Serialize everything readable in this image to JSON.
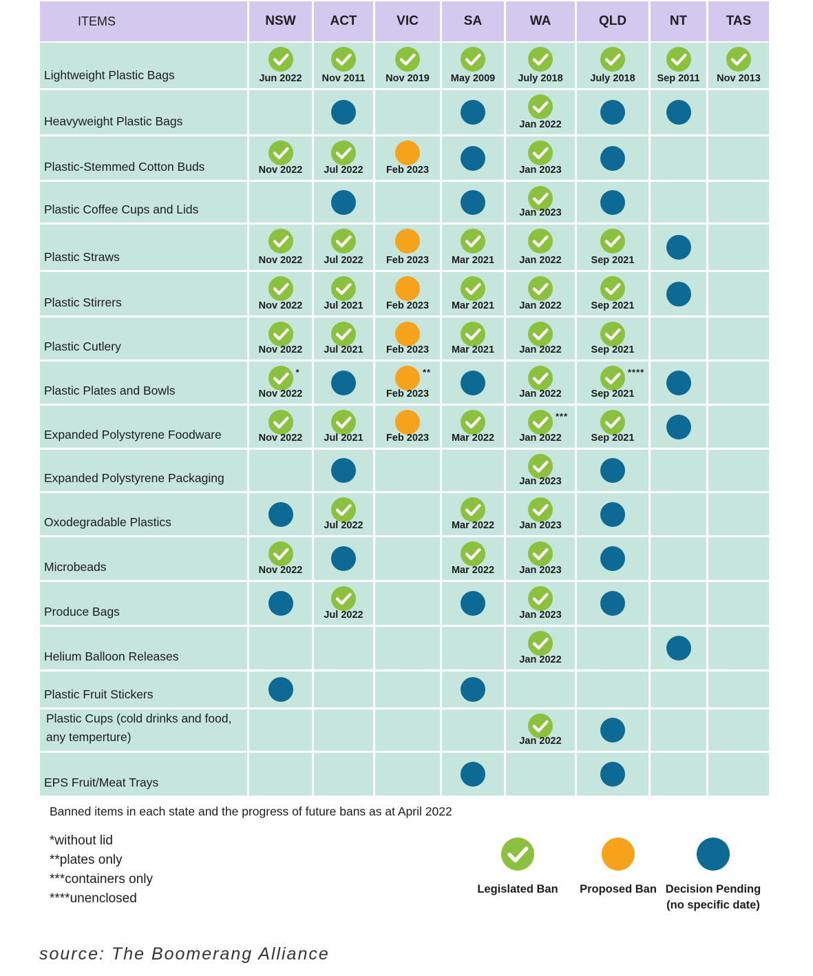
{
  "header": {
    "items_label": "ITEMS",
    "states": [
      "NSW",
      "ACT",
      "VIC",
      "SA",
      "WA",
      "QLD",
      "NT",
      "TAS"
    ]
  },
  "colors": {
    "header_bg": "#d4c8ee",
    "cell_bg": "#c6e6dd",
    "legislated": "#8cc13f",
    "proposed": "#f7a21b",
    "pending": "#0d6a94"
  },
  "rows": [
    {
      "item": "Lightweight Plastic Bags",
      "cells": [
        {
          "status": "legislated",
          "date": "Jun 2022"
        },
        {
          "status": "legislated",
          "date": "Nov 2011"
        },
        {
          "status": "legislated",
          "date": "Nov 2019"
        },
        {
          "status": "legislated",
          "date": "May 2009"
        },
        {
          "status": "legislated",
          "date": "July 2018"
        },
        {
          "status": "legislated",
          "date": "July 2018"
        },
        {
          "status": "legislated",
          "date": "Sep 2011"
        },
        {
          "status": "legislated",
          "date": "Nov 2013"
        }
      ]
    },
    {
      "item": "Heavyweight Plastic Bags",
      "cells": [
        null,
        {
          "status": "pending"
        },
        null,
        {
          "status": "pending"
        },
        {
          "status": "legislated",
          "date": "Jan 2022"
        },
        {
          "status": "pending"
        },
        {
          "status": "pending"
        },
        null
      ]
    },
    {
      "item": "Plastic-Stemmed Cotton Buds",
      "cells": [
        {
          "status": "legislated",
          "date": "Nov 2022"
        },
        {
          "status": "legislated",
          "date": "Jul 2022"
        },
        {
          "status": "proposed",
          "date": "Feb 2023"
        },
        {
          "status": "pending"
        },
        {
          "status": "legislated",
          "date": "Jan 2023"
        },
        {
          "status": "pending"
        },
        null,
        null
      ]
    },
    {
      "item": "Plastic Coffee Cups and Lids",
      "cells": [
        null,
        {
          "status": "pending"
        },
        null,
        {
          "status": "pending"
        },
        {
          "status": "legislated",
          "date": "Jan 2023"
        },
        {
          "status": "pending"
        },
        null,
        null
      ]
    },
    {
      "item": "Plastic Straws",
      "cells": [
        {
          "status": "legislated",
          "date": "Nov 2022"
        },
        {
          "status": "legislated",
          "date": "Jul 2022"
        },
        {
          "status": "proposed",
          "date": "Feb 2023"
        },
        {
          "status": "legislated",
          "date": "Mar 2021"
        },
        {
          "status": "legislated",
          "date": "Jan 2022"
        },
        {
          "status": "legislated",
          "date": "Sep 2021"
        },
        {
          "status": "pending"
        },
        null
      ]
    },
    {
      "item": "Plastic Stirrers",
      "cells": [
        {
          "status": "legislated",
          "date": "Nov 2022"
        },
        {
          "status": "legislated",
          "date": "Jul 2021"
        },
        {
          "status": "proposed",
          "date": "Feb 2023"
        },
        {
          "status": "legislated",
          "date": "Mar 2021"
        },
        {
          "status": "legislated",
          "date": "Jan 2022"
        },
        {
          "status": "legislated",
          "date": "Sep 2021"
        },
        {
          "status": "pending"
        },
        null
      ]
    },
    {
      "item": "Plastic Cutlery",
      "cells": [
        {
          "status": "legislated",
          "date": "Nov 2022"
        },
        {
          "status": "legislated",
          "date": "Jul 2021"
        },
        {
          "status": "proposed",
          "date": "Feb 2023"
        },
        {
          "status": "legislated",
          "date": "Mar 2021"
        },
        {
          "status": "legislated",
          "date": "Jan 2022"
        },
        {
          "status": "legislated",
          "date": "Sep 2021"
        },
        null,
        null
      ]
    },
    {
      "item": "Plastic Plates and Bowls",
      "cells": [
        {
          "status": "legislated",
          "date": "Nov 2022",
          "note": "*"
        },
        {
          "status": "pending"
        },
        {
          "status": "proposed",
          "date": "Feb 2023",
          "note": "**"
        },
        {
          "status": "pending"
        },
        {
          "status": "legislated",
          "date": "Jan 2022"
        },
        {
          "status": "legislated",
          "date": "Sep 2021",
          "note": "****"
        },
        {
          "status": "pending"
        },
        null
      ]
    },
    {
      "item": "Expanded Polystyrene Foodware",
      "cells": [
        {
          "status": "legislated",
          "date": "Nov 2022"
        },
        {
          "status": "legislated",
          "date": "Jul 2021"
        },
        {
          "status": "proposed",
          "date": "Feb 2023"
        },
        {
          "status": "legislated",
          "date": "Mar 2022"
        },
        {
          "status": "legislated",
          "date": "Jan 2022",
          "note": "***"
        },
        {
          "status": "legislated",
          "date": "Sep 2021"
        },
        {
          "status": "pending"
        },
        null
      ]
    },
    {
      "item": "Expanded Polystyrene Packaging",
      "cells": [
        null,
        {
          "status": "pending"
        },
        null,
        null,
        {
          "status": "legislated",
          "date": "Jan 2023"
        },
        {
          "status": "pending"
        },
        null,
        null
      ]
    },
    {
      "item": "Oxodegradable Plastics",
      "cells": [
        {
          "status": "pending"
        },
        {
          "status": "legislated",
          "date": "Jul 2022"
        },
        null,
        {
          "status": "legislated",
          "date": "Mar 2022"
        },
        {
          "status": "legislated",
          "date": "Jan 2023"
        },
        {
          "status": "pending"
        },
        null,
        null
      ]
    },
    {
      "item": "Microbeads",
      "cells": [
        {
          "status": "legislated",
          "date": "Nov 2022"
        },
        {
          "status": "pending"
        },
        null,
        {
          "status": "legislated",
          "date": "Mar 2022"
        },
        {
          "status": "legislated",
          "date": "Jan 2023"
        },
        {
          "status": "pending"
        },
        null,
        null
      ]
    },
    {
      "item": "Produce Bags",
      "cells": [
        {
          "status": "pending"
        },
        {
          "status": "legislated",
          "date": "Jul 2022"
        },
        null,
        {
          "status": "pending"
        },
        {
          "status": "legislated",
          "date": "Jan 2023"
        },
        {
          "status": "pending"
        },
        null,
        null
      ]
    },
    {
      "item": "Helium Balloon Releases",
      "cells": [
        null,
        null,
        null,
        null,
        {
          "status": "legislated",
          "date": "Jan 2022"
        },
        null,
        {
          "status": "pending"
        },
        null
      ]
    },
    {
      "item": "Plastic Fruit Stickers",
      "cells": [
        {
          "status": "pending"
        },
        null,
        null,
        {
          "status": "pending"
        },
        null,
        null,
        null,
        null
      ]
    },
    {
      "item": "Plastic Cups (cold drinks and food, any temperture)",
      "cells": [
        null,
        null,
        null,
        null,
        {
          "status": "legislated",
          "date": "Jan 2022"
        },
        {
          "status": "pending"
        },
        null,
        null
      ]
    },
    {
      "item": "EPS Fruit/Meat Trays",
      "cells": [
        null,
        null,
        null,
        {
          "status": "pending"
        },
        null,
        {
          "status": "pending"
        },
        null,
        null
      ]
    }
  ],
  "caption": "Banned items in each state and the progress of future bans as at April 2022",
  "footnotes": [
    "*without lid",
    "**plates only",
    "***containers only",
    "****unenclosed"
  ],
  "legend": [
    {
      "status": "legislated",
      "label": "Legislated Ban"
    },
    {
      "status": "proposed",
      "label": "Proposed Ban"
    },
    {
      "status": "pending",
      "label": "Decision Pending (no specific date)"
    }
  ],
  "source": "source: The Boomerang Alliance"
}
